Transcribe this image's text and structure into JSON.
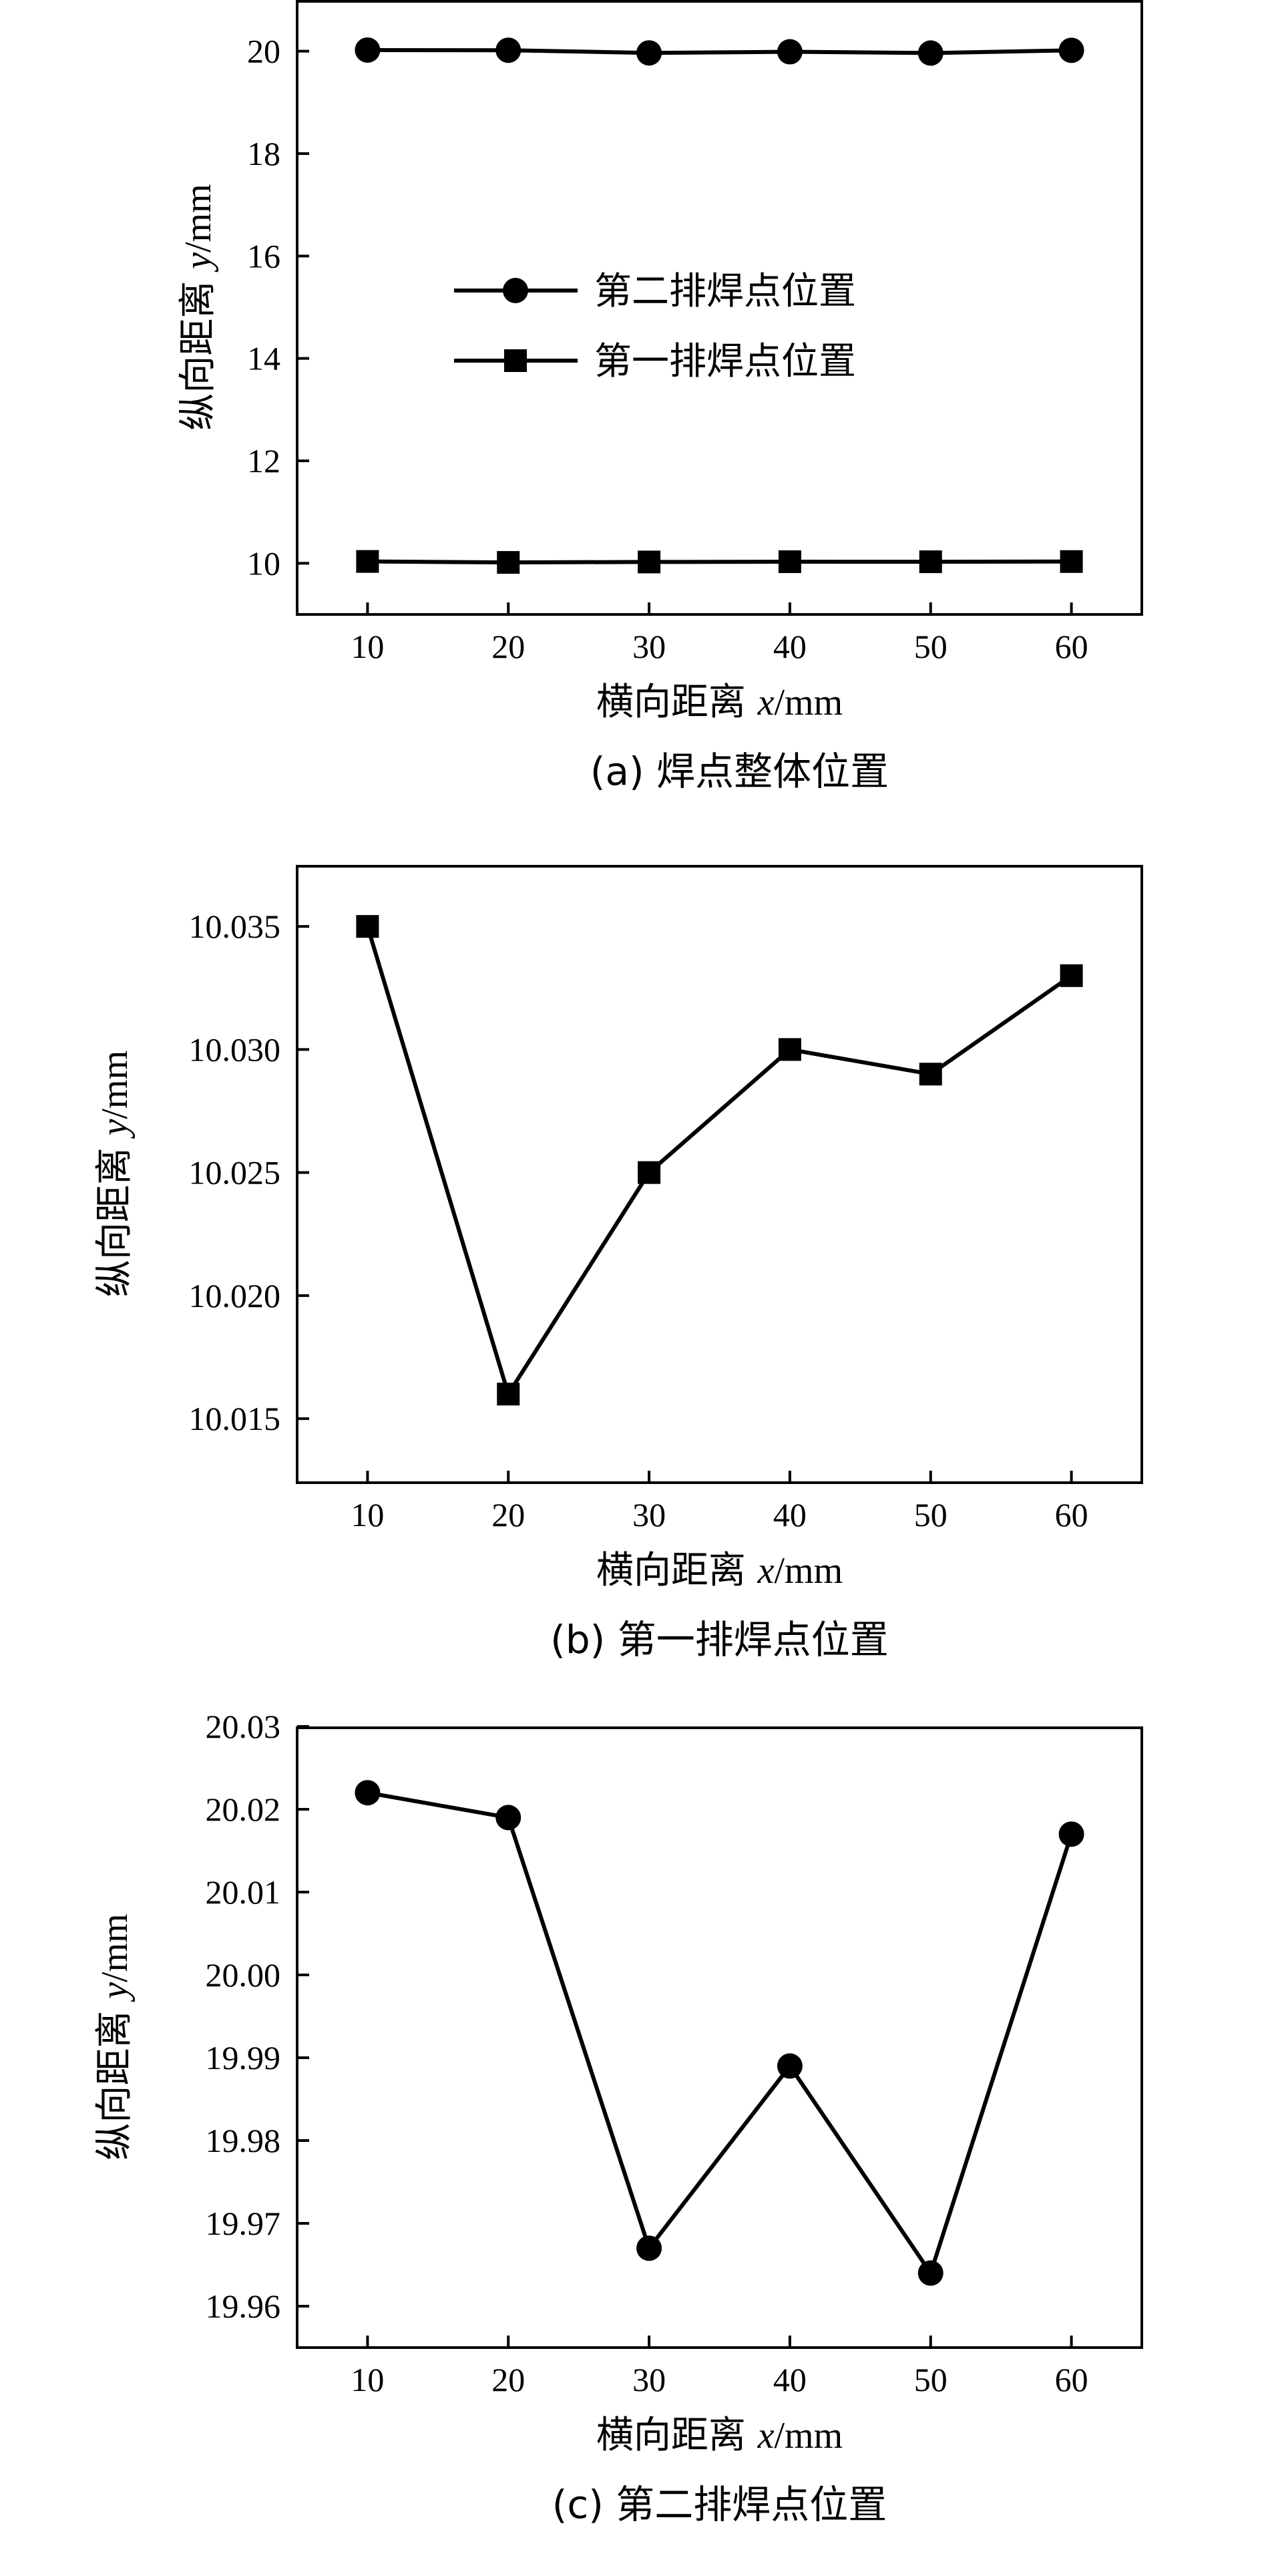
{
  "chart_data": [
    {
      "type": "line",
      "caption": "(a) 焊点整体位置",
      "xlabel": "横向距离 x/mm",
      "ylabel": "纵向距离 y/mm",
      "xlim": [
        5,
        65
      ],
      "ylim": [
        9,
        21
      ],
      "xticks": [
        "10",
        "20",
        "30",
        "40",
        "50",
        "60"
      ],
      "yticks": [
        "10",
        "12",
        "14",
        "16",
        "18",
        "20"
      ],
      "legend_position": "center-left",
      "series": [
        {
          "name": "第二排焊点位置",
          "marker": "circle",
          "x": [
            10,
            20,
            30,
            40,
            50,
            60
          ],
          "values": [
            20.022,
            20.019,
            19.967,
            19.989,
            19.964,
            20.017
          ]
        },
        {
          "name": "第一排焊点位置",
          "marker": "square",
          "x": [
            10,
            20,
            30,
            40,
            50,
            60
          ],
          "values": [
            10.035,
            10.016,
            10.025,
            10.03,
            10.029,
            10.033
          ]
        }
      ]
    },
    {
      "type": "line",
      "caption": "(b) 第一排焊点位置",
      "xlabel": "横向距离 x/mm",
      "ylabel": "纵向距离 y/mm",
      "xlim": [
        5,
        65
      ],
      "ylim": [
        10.0124,
        10.0375
      ],
      "xticks": [
        "10",
        "20",
        "30",
        "40",
        "50",
        "60"
      ],
      "yticks": [
        "10.015",
        "10.020",
        "10.025",
        "10.030",
        "10.035"
      ],
      "series": [
        {
          "marker": "square",
          "x": [
            10,
            20,
            30,
            40,
            50,
            60
          ],
          "values": [
            10.035,
            10.016,
            10.025,
            10.03,
            10.029,
            10.033
          ]
        }
      ]
    },
    {
      "type": "line",
      "caption": "(c) 第二排焊点位置",
      "xlabel": "横向距离 x/mm",
      "ylabel": "纵向距离 y/mm",
      "xlim": [
        5,
        65
      ],
      "ylim": [
        19.955,
        20.03
      ],
      "xticks": [
        "10",
        "20",
        "30",
        "40",
        "50",
        "60"
      ],
      "yticks": [
        "19.96",
        "19.97",
        "19.98",
        "19.99",
        "20.00",
        "20.01",
        "20.02",
        "20.03"
      ],
      "series": [
        {
          "marker": "circle",
          "x": [
            10,
            20,
            30,
            40,
            50,
            60
          ],
          "values": [
            20.022,
            20.019,
            19.967,
            19.989,
            19.964,
            20.017
          ]
        }
      ]
    }
  ]
}
